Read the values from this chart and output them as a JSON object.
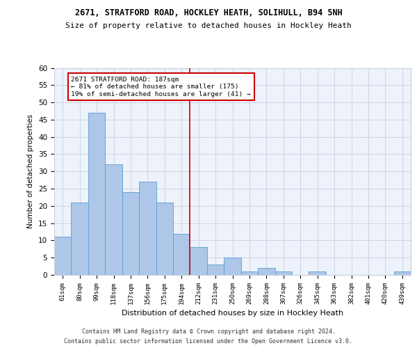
{
  "title1": "2671, STRATFORD ROAD, HOCKLEY HEATH, SOLIHULL, B94 5NH",
  "title2": "Size of property relative to detached houses in Hockley Heath",
  "xlabel": "Distribution of detached houses by size in Hockley Heath",
  "ylabel": "Number of detached properties",
  "categories": [
    "61sqm",
    "80sqm",
    "99sqm",
    "118sqm",
    "137sqm",
    "156sqm",
    "175sqm",
    "194sqm",
    "212sqm",
    "231sqm",
    "250sqm",
    "269sqm",
    "288sqm",
    "307sqm",
    "326sqm",
    "345sqm",
    "363sqm",
    "382sqm",
    "401sqm",
    "420sqm",
    "439sqm"
  ],
  "values": [
    11,
    21,
    47,
    32,
    24,
    27,
    21,
    12,
    8,
    3,
    5,
    1,
    2,
    1,
    0,
    1,
    0,
    0,
    0,
    0,
    1
  ],
  "bar_color": "#aec6e8",
  "bar_edge_color": "#5a9fd4",
  "annotation_line1": "2671 STRATFORD ROAD: 187sqm",
  "annotation_line2": "← 81% of detached houses are smaller (175)",
  "annotation_line3": "19% of semi-detached houses are larger (41) →",
  "vline_color": "#cc0000",
  "vline_position": 7.5,
  "ylim": [
    0,
    60
  ],
  "yticks": [
    0,
    5,
    10,
    15,
    20,
    25,
    30,
    35,
    40,
    45,
    50,
    55,
    60
  ],
  "annotation_box_color": "#ffffff",
  "annotation_box_edge": "#cc0000",
  "footer1": "Contains HM Land Registry data © Crown copyright and database right 2024.",
  "footer2": "Contains public sector information licensed under the Open Government Licence v3.0.",
  "background_color": "#eef2fa",
  "grid_color": "#c8d0e0"
}
